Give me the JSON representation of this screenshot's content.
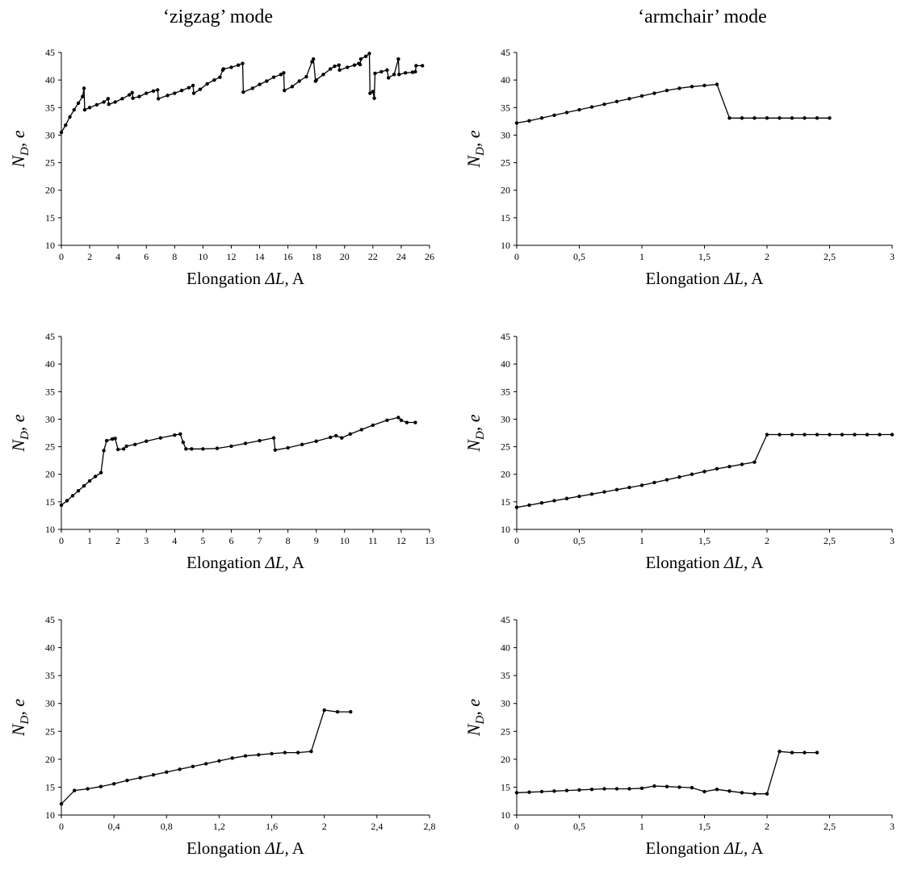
{
  "column_titles": [
    "‘zigzag’ mode",
    "‘armchair’ mode"
  ],
  "chart_data": [
    {
      "type": "line",
      "panel": "top-left",
      "xlabel_text": "Elongation ",
      "xlabel_symbol": "ΔL",
      "xlabel_unit": ", A",
      "ylabel_symbol": "N",
      "ylabel_sub": "D",
      "ylabel_rest": ", e",
      "xlim": [
        0,
        26
      ],
      "ylim": [
        10,
        45
      ],
      "xticks": [
        "0",
        "2",
        "4",
        "6",
        "8",
        "10",
        "12",
        "14",
        "16",
        "18",
        "20",
        "22",
        "24",
        "26"
      ],
      "yticks": [
        "10",
        "15",
        "20",
        "25",
        "30",
        "35",
        "40",
        "45"
      ],
      "x": [
        0,
        0.3,
        0.6,
        0.9,
        1.2,
        1.5,
        1.6,
        1.65,
        2.0,
        2.5,
        3.0,
        3.3,
        3.35,
        3.8,
        4.3,
        4.8,
        5.0,
        5.05,
        5.5,
        6.0,
        6.5,
        6.8,
        6.85,
        7.5,
        8.0,
        8.5,
        9.0,
        9.3,
        9.35,
        9.8,
        10.3,
        10.8,
        11.2,
        11.4,
        11.45,
        12.0,
        12.5,
        12.8,
        12.85,
        13.5,
        14.0,
        14.5,
        15.0,
        15.5,
        15.7,
        15.75,
        16.3,
        16.8,
        17.3,
        17.7,
        17.8,
        17.95,
        18.0,
        18.5,
        19.0,
        19.3,
        19.6,
        19.65,
        20.2,
        20.7,
        21.0,
        21.1,
        21.15,
        21.5,
        21.75,
        21.8,
        22.0,
        22.1,
        22.15,
        22.6,
        23.0,
        23.1,
        23.5,
        23.8,
        23.85,
        24.3,
        24.8,
        25.0,
        25.05,
        25.5
      ],
      "y": [
        30.5,
        31.8,
        33.3,
        34.6,
        35.8,
        37.0,
        38.5,
        34.6,
        35.0,
        35.5,
        36.0,
        36.6,
        35.6,
        36.0,
        36.6,
        37.3,
        37.7,
        36.7,
        37.0,
        37.6,
        38.0,
        38.2,
        36.6,
        37.2,
        37.6,
        38.1,
        38.6,
        39.0,
        37.6,
        38.3,
        39.3,
        40.0,
        40.5,
        41.8,
        42.0,
        42.3,
        42.7,
        43.0,
        37.8,
        38.5,
        39.2,
        39.8,
        40.5,
        41.0,
        41.3,
        38.1,
        38.8,
        39.8,
        40.6,
        43.3,
        43.8,
        39.8,
        40.0,
        41.0,
        42.0,
        42.5,
        42.7,
        41.8,
        42.3,
        42.7,
        43.0,
        42.8,
        43.8,
        44.3,
        44.8,
        37.6,
        37.9,
        36.7,
        41.2,
        41.5,
        41.8,
        40.4,
        41.0,
        43.8,
        41.0,
        41.3,
        41.4,
        41.5,
        42.6,
        42.6
      ]
    },
    {
      "type": "line",
      "panel": "top-right",
      "xlabel_text": "Elongation ",
      "xlabel_symbol": "ΔL",
      "xlabel_unit": ", A",
      "ylabel_symbol": "N",
      "ylabel_sub": "D",
      "ylabel_rest": ", e",
      "xlim": [
        0,
        3
      ],
      "ylim": [
        10,
        45
      ],
      "xticks": [
        "0",
        "0,5",
        "1",
        "1,5",
        "2",
        "2,5",
        "3"
      ],
      "yticks": [
        "10",
        "15",
        "20",
        "25",
        "30",
        "35",
        "40",
        "45"
      ],
      "x": [
        0,
        0.1,
        0.2,
        0.3,
        0.4,
        0.5,
        0.6,
        0.7,
        0.8,
        0.9,
        1.0,
        1.1,
        1.2,
        1.3,
        1.4,
        1.5,
        1.6,
        1.7,
        1.8,
        1.9,
        2.0,
        2.1,
        2.2,
        2.3,
        2.4,
        2.5
      ],
      "y": [
        32.2,
        32.6,
        33.1,
        33.6,
        34.1,
        34.6,
        35.1,
        35.6,
        36.1,
        36.6,
        37.1,
        37.6,
        38.1,
        38.5,
        38.8,
        39.0,
        39.2,
        33.1,
        33.1,
        33.1,
        33.1,
        33.1,
        33.1,
        33.1,
        33.1,
        33.1
      ]
    },
    {
      "type": "line",
      "panel": "middle-left",
      "xlabel_text": "Elongation ",
      "xlabel_symbol": "ΔL",
      "xlabel_unit": ", A",
      "ylabel_symbol": "N",
      "ylabel_sub": "D",
      "ylabel_rest": ", e",
      "xlim": [
        0,
        13
      ],
      "ylim": [
        10,
        45
      ],
      "xticks": [
        "0",
        "1",
        "2",
        "3",
        "4",
        "5",
        "6",
        "7",
        "8",
        "9",
        "10",
        "11",
        "12",
        "13"
      ],
      "yticks": [
        "10",
        "15",
        "20",
        "25",
        "30",
        "35",
        "40",
        "45"
      ],
      "x": [
        0,
        0.2,
        0.4,
        0.6,
        0.8,
        1.0,
        1.2,
        1.4,
        1.5,
        1.6,
        1.8,
        1.9,
        2.0,
        2.2,
        2.3,
        2.6,
        3.0,
        3.5,
        4.0,
        4.2,
        4.3,
        4.4,
        4.6,
        5.0,
        5.5,
        6.0,
        6.5,
        7.0,
        7.5,
        7.55,
        8.0,
        8.5,
        9.0,
        9.5,
        9.7,
        9.9,
        10.2,
        10.6,
        11.0,
        11.5,
        11.9,
        12.0,
        12.2,
        12.5
      ],
      "y": [
        14.4,
        15.2,
        16.1,
        17.0,
        17.9,
        18.8,
        19.6,
        20.3,
        24.3,
        26.1,
        26.4,
        26.5,
        24.5,
        24.6,
        25.1,
        25.4,
        26.0,
        26.6,
        27.1,
        27.3,
        25.8,
        24.6,
        24.6,
        24.6,
        24.7,
        25.1,
        25.6,
        26.1,
        26.6,
        24.4,
        24.8,
        25.4,
        26.0,
        26.7,
        27.0,
        26.6,
        27.3,
        28.1,
        28.9,
        29.8,
        30.3,
        29.8,
        29.4,
        29.4
      ]
    },
    {
      "type": "line",
      "panel": "middle-right",
      "xlabel_text": "Elongation ",
      "xlabel_symbol": "ΔL",
      "xlabel_unit": ", A",
      "ylabel_symbol": "N",
      "ylabel_sub": "D",
      "ylabel_rest": ", e",
      "xlim": [
        0,
        3
      ],
      "ylim": [
        10,
        45
      ],
      "xticks": [
        "0",
        "0,5",
        "1",
        "1,5",
        "2",
        "2,5",
        "3"
      ],
      "yticks": [
        "10",
        "15",
        "20",
        "25",
        "30",
        "35",
        "40",
        "45"
      ],
      "x": [
        0,
        0.1,
        0.2,
        0.3,
        0.4,
        0.5,
        0.6,
        0.7,
        0.8,
        0.9,
        1.0,
        1.1,
        1.2,
        1.3,
        1.4,
        1.5,
        1.6,
        1.7,
        1.8,
        1.9,
        2.0,
        2.1,
        2.2,
        2.3,
        2.4,
        2.5,
        2.6,
        2.7,
        2.8,
        2.9,
        3.0
      ],
      "y": [
        14.0,
        14.4,
        14.8,
        15.2,
        15.6,
        16.0,
        16.4,
        16.8,
        17.2,
        17.6,
        18.0,
        18.5,
        19.0,
        19.5,
        20.0,
        20.5,
        21.0,
        21.4,
        21.8,
        22.2,
        27.2,
        27.2,
        27.2,
        27.2,
        27.2,
        27.2,
        27.2,
        27.2,
        27.2,
        27.2,
        27.2
      ]
    },
    {
      "type": "line",
      "panel": "bottom-left",
      "xlabel_text": "Elongation ",
      "xlabel_symbol": "ΔL",
      "xlabel_unit": ", A",
      "ylabel_symbol": "N",
      "ylabel_sub": "D",
      "ylabel_rest": ", e",
      "xlim": [
        0,
        2.8
      ],
      "ylim": [
        10,
        45
      ],
      "xticks": [
        "0",
        "0,4",
        "0,8",
        "1,2",
        "1,6",
        "2",
        "2,4",
        "2,8"
      ],
      "yticks": [
        "10",
        "15",
        "20",
        "25",
        "30",
        "35",
        "40",
        "45"
      ],
      "x": [
        0,
        0.1,
        0.2,
        0.3,
        0.4,
        0.5,
        0.6,
        0.7,
        0.8,
        0.9,
        1.0,
        1.1,
        1.2,
        1.3,
        1.4,
        1.5,
        1.6,
        1.7,
        1.8,
        1.9,
        2.0,
        2.1,
        2.2
      ],
      "y": [
        12.0,
        14.4,
        14.7,
        15.1,
        15.6,
        16.2,
        16.7,
        17.2,
        17.7,
        18.2,
        18.7,
        19.2,
        19.7,
        20.2,
        20.6,
        20.8,
        21.0,
        21.2,
        21.2,
        21.4,
        28.8,
        28.5,
        28.5
      ]
    },
    {
      "type": "line",
      "panel": "bottom-right",
      "xlabel_text": "Elongation ",
      "xlabel_symbol": "ΔL",
      "xlabel_unit": ", A",
      "ylabel_symbol": "N",
      "ylabel_sub": "D",
      "ylabel_rest": ", e",
      "xlim": [
        0,
        3
      ],
      "ylim": [
        10,
        45
      ],
      "xticks": [
        "0",
        "0,5",
        "1",
        "1,5",
        "2",
        "2,5",
        "3"
      ],
      "yticks": [
        "10",
        "15",
        "20",
        "25",
        "30",
        "35",
        "40",
        "45"
      ],
      "x": [
        0,
        0.1,
        0.2,
        0.3,
        0.4,
        0.5,
        0.6,
        0.7,
        0.8,
        0.9,
        1.0,
        1.1,
        1.2,
        1.3,
        1.4,
        1.5,
        1.6,
        1.7,
        1.8,
        1.9,
        2.0,
        2.1,
        2.2,
        2.3,
        2.4
      ],
      "y": [
        14.0,
        14.1,
        14.2,
        14.3,
        14.4,
        14.5,
        14.6,
        14.7,
        14.7,
        14.7,
        14.8,
        15.2,
        15.1,
        15.0,
        14.9,
        14.2,
        14.6,
        14.3,
        14.0,
        13.8,
        13.8,
        21.4,
        21.2,
        21.2,
        21.2
      ]
    }
  ]
}
